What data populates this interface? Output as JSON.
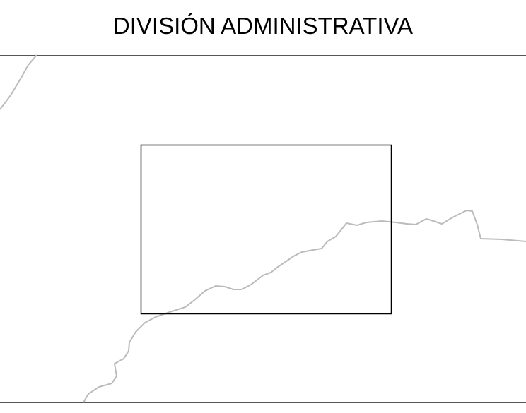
{
  "header": {
    "title": "DIVISIÓN ADMINISTRATIVA"
  }
}
